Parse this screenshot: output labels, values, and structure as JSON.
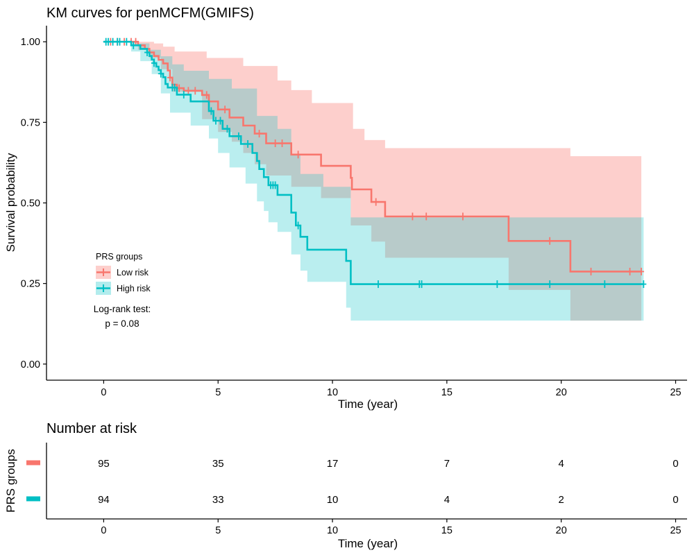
{
  "chart_data": [
    {
      "type": "line",
      "subtype": "kaplan-meier",
      "title": "KM curves for penMCFM(GMIFS)",
      "xlabel": "Time (year)",
      "ylabel": "Survival probability",
      "xlim": [
        -2.5,
        25.5
      ],
      "ylim": [
        -0.05,
        1.05
      ],
      "xticks": [
        0,
        5,
        10,
        15,
        20,
        25
      ],
      "xtick_labels": [
        "0",
        "5",
        "10",
        "15",
        "20",
        "25"
      ],
      "yticks": [
        0,
        0.25,
        0.5,
        0.75,
        1
      ],
      "ytick_labels": [
        "0.00",
        "0.25",
        "0.50",
        "0.75",
        "1.00"
      ],
      "grid": false,
      "legend": {
        "title": "PRS groups",
        "position": "lower-left",
        "entries": [
          "Low risk",
          "High risk"
        ]
      },
      "annotation": {
        "line1": "Log-rank test:",
        "line2": "p = 0.08"
      },
      "series": [
        {
          "name": "Low risk",
          "color": "#F8766D",
          "steps": [
            [
              0,
              1.0
            ],
            [
              1.5,
              0.989
            ],
            [
              1.8,
              0.978
            ],
            [
              2.0,
              0.967
            ],
            [
              2.2,
              0.956
            ],
            [
              2.4,
              0.944
            ],
            [
              2.6,
              0.933
            ],
            [
              2.8,
              0.911
            ],
            [
              2.9,
              0.889
            ],
            [
              3.0,
              0.867
            ],
            [
              3.2,
              0.856
            ],
            [
              3.5,
              0.848
            ],
            [
              4.3,
              0.835
            ],
            [
              4.6,
              0.815
            ],
            [
              5.0,
              0.79
            ],
            [
              5.5,
              0.765
            ],
            [
              6.1,
              0.74
            ],
            [
              6.6,
              0.715
            ],
            [
              7.1,
              0.685
            ],
            [
              8.2,
              0.65
            ],
            [
              9.5,
              0.615
            ],
            [
              10.8,
              0.578
            ],
            [
              10.85,
              0.542
            ],
            [
              11.7,
              0.503
            ],
            [
              12.3,
              0.458
            ],
            [
              17.7,
              0.382
            ],
            [
              20.4,
              0.287
            ],
            [
              23.5,
              0.287
            ]
          ],
          "ci_upper": [
            [
              0,
              1.0
            ],
            [
              1.6,
              1.0
            ],
            [
              2.2,
              0.995
            ],
            [
              2.6,
              0.985
            ],
            [
              3.1,
              0.97
            ],
            [
              4.5,
              0.95
            ],
            [
              6.1,
              0.925
            ],
            [
              7.6,
              0.88
            ],
            [
              8.2,
              0.85
            ],
            [
              9.1,
              0.81
            ],
            [
              10.9,
              0.73
            ],
            [
              11.4,
              0.695
            ],
            [
              12.3,
              0.67
            ],
            [
              17.7,
              0.67
            ],
            [
              20.4,
              0.645
            ],
            [
              23.5,
              0.62
            ]
          ],
          "ci_lower": [
            [
              0,
              1.0
            ],
            [
              1.5,
              0.975
            ],
            [
              2.0,
              0.95
            ],
            [
              2.5,
              0.915
            ],
            [
              3.0,
              0.845
            ],
            [
              4.3,
              0.76
            ],
            [
              5.0,
              0.72
            ],
            [
              5.6,
              0.69
            ],
            [
              6.1,
              0.655
            ],
            [
              6.6,
              0.62
            ],
            [
              7.1,
              0.585
            ],
            [
              8.2,
              0.55
            ],
            [
              9.5,
              0.515
            ],
            [
              10.8,
              0.43
            ],
            [
              11.7,
              0.38
            ],
            [
              12.3,
              0.33
            ],
            [
              17.7,
              0.23
            ],
            [
              20.4,
              0.135
            ],
            [
              23.5,
              0.135
            ]
          ],
          "censored": [
            0.3,
            0.6,
            0.9,
            1.2,
            1.4,
            2.9,
            3.3,
            3.7,
            4.0,
            4.5,
            5.3,
            6.8,
            7.5,
            7.8,
            8.5,
            11.9,
            13.5,
            14.1,
            15.7,
            19.5,
            21.3,
            23.0,
            23.5
          ]
        },
        {
          "name": "High risk",
          "color": "#00BFC4",
          "steps": [
            [
              0,
              1.0
            ],
            [
              1.2,
              0.989
            ],
            [
              1.6,
              0.978
            ],
            [
              1.9,
              0.967
            ],
            [
              2.0,
              0.956
            ],
            [
              2.1,
              0.945
            ],
            [
              2.2,
              0.934
            ],
            [
              2.3,
              0.923
            ],
            [
              2.4,
              0.912
            ],
            [
              2.5,
              0.901
            ],
            [
              2.6,
              0.89
            ],
            [
              2.7,
              0.869
            ],
            [
              2.8,
              0.858
            ],
            [
              3.2,
              0.836
            ],
            [
              3.8,
              0.815
            ],
            [
              4.6,
              0.785
            ],
            [
              4.8,
              0.755
            ],
            [
              5.2,
              0.73
            ],
            [
              5.5,
              0.707
            ],
            [
              6.0,
              0.683
            ],
            [
              6.5,
              0.655
            ],
            [
              6.7,
              0.63
            ],
            [
              6.8,
              0.605
            ],
            [
              7.0,
              0.58
            ],
            [
              7.2,
              0.555
            ],
            [
              7.6,
              0.525
            ],
            [
              8.2,
              0.47
            ],
            [
              8.4,
              0.43
            ],
            [
              8.6,
              0.395
            ],
            [
              8.9,
              0.355
            ],
            [
              10.6,
              0.32
            ],
            [
              10.8,
              0.248
            ],
            [
              23.6,
              0.248
            ]
          ],
          "ci_upper": [
            [
              0,
              1.0
            ],
            [
              1.5,
              0.995
            ],
            [
              2.0,
              0.975
            ],
            [
              2.5,
              0.955
            ],
            [
              3.0,
              0.93
            ],
            [
              3.5,
              0.91
            ],
            [
              4.6,
              0.885
            ],
            [
              5.6,
              0.855
            ],
            [
              6.7,
              0.77
            ],
            [
              7.6,
              0.73
            ],
            [
              8.2,
              0.65
            ],
            [
              8.6,
              0.59
            ],
            [
              9.6,
              0.55
            ],
            [
              10.8,
              0.455
            ],
            [
              23.6,
              0.455
            ]
          ],
          "ci_lower": [
            [
              0,
              1.0
            ],
            [
              1.2,
              0.97
            ],
            [
              1.6,
              0.94
            ],
            [
              2.1,
              0.9
            ],
            [
              2.5,
              0.84
            ],
            [
              2.9,
              0.78
            ],
            [
              3.8,
              0.74
            ],
            [
              4.6,
              0.7
            ],
            [
              5.0,
              0.655
            ],
            [
              5.5,
              0.61
            ],
            [
              6.2,
              0.56
            ],
            [
              6.7,
              0.505
            ],
            [
              7.0,
              0.475
            ],
            [
              7.2,
              0.44
            ],
            [
              7.6,
              0.41
            ],
            [
              8.2,
              0.34
            ],
            [
              8.6,
              0.29
            ],
            [
              8.9,
              0.255
            ],
            [
              10.6,
              0.175
            ],
            [
              10.8,
              0.135
            ],
            [
              23.6,
              0.135
            ]
          ],
          "censored": [
            0.1,
            0.2,
            0.4,
            0.6,
            0.7,
            1.0,
            1.3,
            1.9,
            2.2,
            2.5,
            3.0,
            3.1,
            3.5,
            4.7,
            4.9,
            5.1,
            5.4,
            5.9,
            6.3,
            7.3,
            7.4,
            7.5,
            8.5,
            12.0,
            13.8,
            13.9,
            17.2,
            19.5,
            21.9,
            23.6
          ]
        }
      ]
    },
    {
      "type": "table",
      "title": "Number at risk",
      "xlabel": "Time (year)",
      "ylabel": "PRS groups",
      "xlim": [
        -2.5,
        25.5
      ],
      "xticks": [
        0,
        5,
        10,
        15,
        20,
        25
      ],
      "xtick_labels": [
        "0",
        "5",
        "10",
        "15",
        "20",
        "25"
      ],
      "rows": [
        {
          "color": "#F8766D",
          "values": [
            "95",
            "35",
            "17",
            "7",
            "4",
            "0"
          ]
        },
        {
          "color": "#00BFC4",
          "values": [
            "94",
            "33",
            "10",
            "4",
            "2",
            "0"
          ]
        }
      ]
    }
  ]
}
